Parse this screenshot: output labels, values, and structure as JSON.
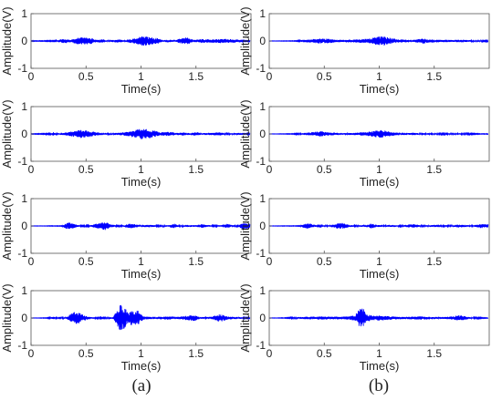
{
  "colors": {
    "signal": "#0000ff",
    "axis": "#555555"
  },
  "panel_labels": [
    "(a)",
    "(b)"
  ],
  "chart_data": [
    {
      "type": "line",
      "column": "a",
      "row": 1,
      "xlabel": "Time(s)",
      "ylabel": "Amplitude(V)",
      "xlim": [
        0,
        2
      ],
      "ylim": [
        -1,
        1
      ],
      "xticks": [
        "0",
        "0.5",
        "1",
        "1.5"
      ],
      "yticks": [
        "1",
        "0",
        "-1"
      ],
      "grid": false,
      "series": [
        {
          "envelope": [
            [
              0.05,
              0.01
            ],
            [
              0.22,
              0.015
            ],
            [
              0.26,
              0.06
            ],
            [
              0.32,
              0.08
            ],
            [
              0.36,
              0.05
            ],
            [
              0.42,
              0.12
            ],
            [
              0.48,
              0.14
            ],
            [
              0.55,
              0.11
            ],
            [
              0.6,
              0.04
            ],
            [
              0.65,
              0.07
            ],
            [
              0.7,
              0.02
            ],
            [
              0.78,
              0.06
            ],
            [
              0.85,
              0.03
            ],
            [
              0.95,
              0.1
            ],
            [
              1.02,
              0.2
            ],
            [
              1.08,
              0.15
            ],
            [
              1.15,
              0.1
            ],
            [
              1.2,
              0.03
            ],
            [
              1.25,
              0.05
            ],
            [
              1.3,
              0.03
            ],
            [
              1.38,
              0.12
            ],
            [
              1.42,
              0.13
            ],
            [
              1.48,
              0.04
            ],
            [
              1.55,
              0.07
            ],
            [
              1.65,
              0.06
            ],
            [
              1.75,
              0.08
            ],
            [
              1.85,
              0.06
            ],
            [
              1.95,
              0.05
            ]
          ]
        }
      ]
    },
    {
      "type": "line",
      "column": "b",
      "row": 1,
      "xlabel": "Time(s)",
      "ylabel": "Amplitude(V)",
      "xlim": [
        0,
        2
      ],
      "ylim": [
        -1,
        1
      ],
      "xticks": [
        "0",
        "0.5",
        "1",
        "1.5"
      ],
      "yticks": [
        "1",
        "0",
        "-1"
      ],
      "grid": false,
      "series": [
        {
          "envelope": [
            [
              0.05,
              0.005
            ],
            [
              0.25,
              0.01
            ],
            [
              0.3,
              0.04
            ],
            [
              0.38,
              0.06
            ],
            [
              0.45,
              0.09
            ],
            [
              0.55,
              0.08
            ],
            [
              0.62,
              0.04
            ],
            [
              0.7,
              0.05
            ],
            [
              0.8,
              0.06
            ],
            [
              0.9,
              0.08
            ],
            [
              0.98,
              0.15
            ],
            [
              1.03,
              0.18
            ],
            [
              1.1,
              0.12
            ],
            [
              1.18,
              0.06
            ],
            [
              1.25,
              0.05
            ],
            [
              1.32,
              0.04
            ],
            [
              1.4,
              0.1
            ],
            [
              1.45,
              0.06
            ],
            [
              1.55,
              0.05
            ],
            [
              1.65,
              0.04
            ],
            [
              1.75,
              0.05
            ],
            [
              1.85,
              0.03
            ],
            [
              1.95,
              0.02
            ]
          ]
        }
      ]
    },
    {
      "type": "line",
      "column": "a",
      "row": 2,
      "xlabel": "Time(s)",
      "ylabel": "Amplitude(V)",
      "xlim": [
        0,
        2
      ],
      "ylim": [
        -1,
        1
      ],
      "xticks": [
        "0",
        "0.5",
        "1",
        "1.5"
      ],
      "yticks": [
        "1",
        "0",
        "-1"
      ],
      "grid": false,
      "series": [
        {
          "envelope": [
            [
              0.05,
              0.01
            ],
            [
              0.18,
              0.02
            ],
            [
              0.2,
              0.07
            ],
            [
              0.23,
              0.02
            ],
            [
              0.3,
              0.05
            ],
            [
              0.38,
              0.1
            ],
            [
              0.45,
              0.15
            ],
            [
              0.5,
              0.13
            ],
            [
              0.55,
              0.1
            ],
            [
              0.62,
              0.05
            ],
            [
              0.7,
              0.03
            ],
            [
              0.78,
              0.04
            ],
            [
              0.85,
              0.06
            ],
            [
              0.95,
              0.14
            ],
            [
              1.0,
              0.2
            ],
            [
              1.05,
              0.18
            ],
            [
              1.12,
              0.12
            ],
            [
              1.18,
              0.06
            ],
            [
              1.25,
              0.08
            ],
            [
              1.32,
              0.04
            ],
            [
              1.38,
              0.06
            ],
            [
              1.45,
              0.03
            ],
            [
              1.5,
              0.07
            ],
            [
              1.55,
              0.03
            ],
            [
              1.62,
              0.04
            ],
            [
              1.72,
              0.06
            ],
            [
              1.78,
              0.02
            ],
            [
              1.85,
              0.03
            ],
            [
              1.92,
              0.04
            ],
            [
              1.97,
              0.02
            ]
          ]
        }
      ]
    },
    {
      "type": "line",
      "column": "b",
      "row": 2,
      "xlabel": "Time(s)",
      "ylabel": "Amplitude(V)",
      "xlim": [
        0,
        2
      ],
      "ylim": [
        -1,
        1
      ],
      "xticks": [
        "0",
        "0.5",
        "1",
        "1.5"
      ],
      "yticks": [
        "1",
        "0",
        "-1"
      ],
      "grid": false,
      "series": [
        {
          "envelope": [
            [
              0.05,
              0.005
            ],
            [
              0.2,
              0.01
            ],
            [
              0.3,
              0.03
            ],
            [
              0.38,
              0.06
            ],
            [
              0.45,
              0.1
            ],
            [
              0.5,
              0.08
            ],
            [
              0.55,
              0.06
            ],
            [
              0.62,
              0.04
            ],
            [
              0.7,
              0.03
            ],
            [
              0.8,
              0.05
            ],
            [
              0.9,
              0.08
            ],
            [
              0.98,
              0.13
            ],
            [
              1.03,
              0.14
            ],
            [
              1.1,
              0.08
            ],
            [
              1.18,
              0.05
            ],
            [
              1.25,
              0.04
            ],
            [
              1.32,
              0.05
            ],
            [
              1.38,
              0.03
            ],
            [
              1.5,
              0.03
            ],
            [
              1.6,
              0.02
            ],
            [
              1.72,
              0.03
            ],
            [
              1.82,
              0.02
            ],
            [
              1.92,
              0.01
            ]
          ]
        }
      ]
    },
    {
      "type": "line",
      "column": "a",
      "row": 3,
      "xlabel": "Time(s)",
      "ylabel": "Amplitude(V)",
      "xlim": [
        0,
        2
      ],
      "ylim": [
        -1,
        1
      ],
      "xticks": [
        "0",
        "0.5",
        "1",
        "1.5"
      ],
      "yticks": [
        "1",
        "0",
        "-1"
      ],
      "grid": false,
      "series": [
        {
          "envelope": [
            [
              0.05,
              0.005
            ],
            [
              0.28,
              0.01
            ],
            [
              0.32,
              0.1
            ],
            [
              0.36,
              0.14
            ],
            [
              0.4,
              0.06
            ],
            [
              0.45,
              0.02
            ],
            [
              0.55,
              0.03
            ],
            [
              0.62,
              0.12
            ],
            [
              0.68,
              0.15
            ],
            [
              0.72,
              0.06
            ],
            [
              0.78,
              0.02
            ],
            [
              0.85,
              0.03
            ],
            [
              0.9,
              0.1
            ],
            [
              0.95,
              0.06
            ],
            [
              1.0,
              0.03
            ],
            [
              1.08,
              0.05
            ],
            [
              1.15,
              0.02
            ],
            [
              1.25,
              0.03
            ],
            [
              1.3,
              0.09
            ],
            [
              1.35,
              0.02
            ],
            [
              1.42,
              0.04
            ],
            [
              1.5,
              0.03
            ],
            [
              1.55,
              0.07
            ],
            [
              1.6,
              0.04
            ],
            [
              1.65,
              0.02
            ],
            [
              1.72,
              0.03
            ],
            [
              1.78,
              0.08
            ],
            [
              1.83,
              0.03
            ],
            [
              1.88,
              0.02
            ],
            [
              1.93,
              0.12
            ],
            [
              1.97,
              0.1
            ]
          ]
        }
      ]
    },
    {
      "type": "line",
      "column": "b",
      "row": 3,
      "xlabel": "Time(s)",
      "ylabel": "Amplitude(V)",
      "xlim": [
        0,
        2
      ],
      "ylim": [
        -1,
        1
      ],
      "xticks": [
        "0",
        "0.5",
        "1",
        "1.5"
      ],
      "yticks": [
        "1",
        "0",
        "-1"
      ],
      "grid": false,
      "series": [
        {
          "envelope": [
            [
              0.05,
              0.005
            ],
            [
              0.28,
              0.01
            ],
            [
              0.32,
              0.08
            ],
            [
              0.36,
              0.12
            ],
            [
              0.4,
              0.05
            ],
            [
              0.45,
              0.02
            ],
            [
              0.55,
              0.03
            ],
            [
              0.62,
              0.1
            ],
            [
              0.66,
              0.12
            ],
            [
              0.72,
              0.05
            ],
            [
              0.78,
              0.02
            ],
            [
              0.88,
              0.04
            ],
            [
              0.93,
              0.09
            ],
            [
              0.98,
              0.04
            ],
            [
              1.05,
              0.03
            ],
            [
              1.12,
              0.04
            ],
            [
              1.2,
              0.02
            ],
            [
              1.28,
              0.06
            ],
            [
              1.32,
              0.07
            ],
            [
              1.38,
              0.02
            ],
            [
              1.45,
              0.03
            ],
            [
              1.52,
              0.05
            ],
            [
              1.58,
              0.03
            ],
            [
              1.65,
              0.02
            ],
            [
              1.73,
              0.06
            ],
            [
              1.78,
              0.04
            ],
            [
              1.85,
              0.02
            ],
            [
              1.93,
              0.08
            ],
            [
              1.97,
              0.06
            ]
          ]
        }
      ]
    },
    {
      "type": "line",
      "column": "a",
      "row": 4,
      "xlabel": "Time(s)",
      "ylabel": "Amplitude(V)",
      "xlim": [
        0,
        2
      ],
      "ylim": [
        -1,
        1
      ],
      "xticks": [
        "0",
        "0.5",
        "1",
        "1.5"
      ],
      "yticks": [
        "1",
        "0",
        "-1"
      ],
      "grid": false,
      "series": [
        {
          "envelope": [
            [
              0.05,
              0.005
            ],
            [
              0.15,
              0.01
            ],
            [
              0.2,
              0.05
            ],
            [
              0.24,
              0.01
            ],
            [
              0.32,
              0.03
            ],
            [
              0.38,
              0.2
            ],
            [
              0.42,
              0.24
            ],
            [
              0.48,
              0.1
            ],
            [
              0.55,
              0.03
            ],
            [
              0.65,
              0.02
            ],
            [
              0.75,
              0.04
            ],
            [
              0.8,
              0.45
            ],
            [
              0.84,
              0.5
            ],
            [
              0.88,
              0.2
            ],
            [
              0.92,
              0.3
            ],
            [
              0.97,
              0.28
            ],
            [
              1.02,
              0.06
            ],
            [
              1.1,
              0.04
            ],
            [
              1.18,
              0.05
            ],
            [
              1.25,
              0.06
            ],
            [
              1.32,
              0.04
            ],
            [
              1.38,
              0.06
            ],
            [
              1.45,
              0.1
            ],
            [
              1.48,
              0.12
            ],
            [
              1.52,
              0.05
            ],
            [
              1.58,
              0.03
            ],
            [
              1.65,
              0.05
            ],
            [
              1.7,
              0.14
            ],
            [
              1.74,
              0.12
            ],
            [
              1.8,
              0.05
            ],
            [
              1.88,
              0.04
            ],
            [
              1.95,
              0.02
            ]
          ]
        }
      ]
    },
    {
      "type": "line",
      "column": "b",
      "row": 4,
      "xlabel": "Time(s)",
      "ylabel": "Amplitude(V)",
      "xlim": [
        0,
        2
      ],
      "ylim": [
        -1,
        1
      ],
      "xticks": [
        "0",
        "0.5",
        "1",
        "1.5"
      ],
      "yticks": [
        "1",
        "0",
        "-1"
      ],
      "grid": false,
      "series": [
        {
          "envelope": [
            [
              0.05,
              0.005
            ],
            [
              0.15,
              0.01
            ],
            [
              0.25,
              0.03
            ],
            [
              0.35,
              0.05
            ],
            [
              0.45,
              0.06
            ],
            [
              0.55,
              0.05
            ],
            [
              0.65,
              0.05
            ],
            [
              0.72,
              0.06
            ],
            [
              0.78,
              0.1
            ],
            [
              0.82,
              0.35
            ],
            [
              0.85,
              0.4
            ],
            [
              0.88,
              0.15
            ],
            [
              0.95,
              0.08
            ],
            [
              1.0,
              0.1
            ],
            [
              1.08,
              0.07
            ],
            [
              1.15,
              0.05
            ],
            [
              1.22,
              0.04
            ],
            [
              1.3,
              0.05
            ],
            [
              1.38,
              0.06
            ],
            [
              1.45,
              0.05
            ],
            [
              1.52,
              0.04
            ],
            [
              1.6,
              0.04
            ],
            [
              1.68,
              0.06
            ],
            [
              1.72,
              0.12
            ],
            [
              1.76,
              0.08
            ],
            [
              1.82,
              0.03
            ],
            [
              1.9,
              0.02
            ],
            [
              1.96,
              0.01
            ]
          ]
        }
      ]
    }
  ]
}
